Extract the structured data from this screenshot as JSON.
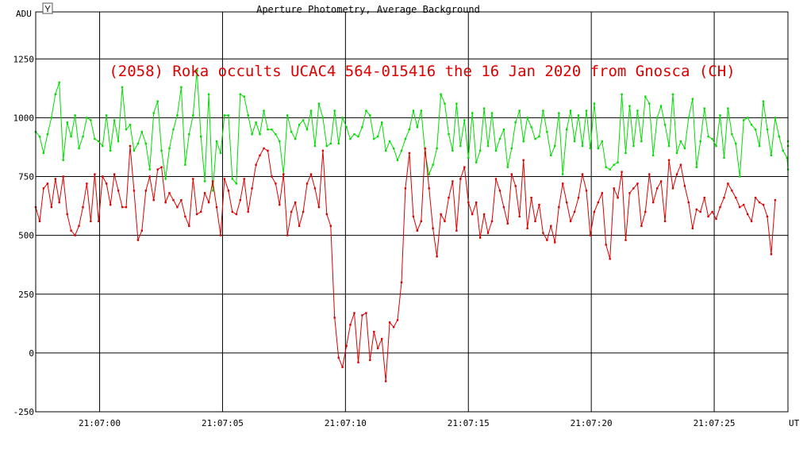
{
  "chart_data": {
    "type": "line",
    "title": "Aperture Photometry, Average Background",
    "annotation": "(2058) Roka occults UCAC4 564-015416 the 16 Jan 2020 from Gnosca (CH)",
    "ylabel": "ADU",
    "xlabel": "UT",
    "ylim": [
      -250,
      1450
    ],
    "xlim": [
      -2.6,
      28.0
    ],
    "x_tick_labels": [
      "21:07:00",
      "21:07:05",
      "21:07:10",
      "21:07:15",
      "21:07:20",
      "21:07:25"
    ],
    "x_tick_seconds": [
      0,
      5,
      10,
      15,
      20,
      25
    ],
    "y_ticks": [
      -250,
      0,
      250,
      500,
      750,
      1000,
      1250
    ],
    "grid": true,
    "series": [
      {
        "color": "#00dd00",
        "x_start": -2.6,
        "x_step": 0.16,
        "values": [
          940,
          920,
          850,
          930,
          1000,
          1100,
          1150,
          820,
          980,
          920,
          1010,
          870,
          920,
          1000,
          990,
          910,
          900,
          880,
          1010,
          860,
          990,
          900,
          1130,
          950,
          970,
          860,
          890,
          940,
          890,
          780,
          1020,
          1070,
          860,
          740,
          870,
          950,
          1010,
          1130,
          800,
          930,
          1010,
          1200,
          920,
          730,
          1100,
          690,
          900,
          850,
          1010,
          1010,
          740,
          720,
          1100,
          1090,
          1010,
          930,
          980,
          930,
          1030,
          950,
          950,
          930,
          900,
          760,
          1010,
          940,
          910,
          970,
          990,
          950,
          1030,
          880,
          1060,
          1000,
          880,
          890,
          1030,
          890,
          1000,
          960,
          910,
          930,
          920,
          960,
          1030,
          1010,
          910,
          920,
          980,
          860,
          900,
          870,
          820,
          860,
          910,
          950,
          1030,
          960,
          1030,
          850,
          760,
          800,
          870,
          1100,
          1060,
          930,
          860,
          1060,
          880,
          990,
          830,
          1020,
          810,
          860,
          1040,
          880,
          1020,
          860,
          910,
          950,
          790,
          870,
          980,
          1030,
          900,
          1000,
          960,
          910,
          920,
          1030,
          940,
          840,
          880,
          1020,
          760,
          950,
          1030,
          900,
          1010,
          880,
          1030,
          870,
          1060,
          870,
          900,
          790,
          780,
          800,
          810,
          1100,
          850,
          1050,
          880,
          1030,
          900,
          1090,
          1060,
          840,
          1000,
          1050,
          970,
          880,
          1100,
          850,
          900,
          870,
          1000,
          1080,
          790,
          900,
          1040,
          920,
          910,
          880,
          1010,
          830,
          1040,
          930,
          890,
          750,
          990,
          1000,
          970,
          950,
          880,
          1070,
          950,
          840,
          1000,
          920,
          860,
          830,
          780,
          880,
          900
        ]
      },
      {
        "color": "#dd0000",
        "x_start": -2.6,
        "x_step": 0.16,
        "values": [
          620,
          560,
          700,
          720,
          620,
          740,
          640,
          750,
          590,
          520,
          500,
          540,
          620,
          720,
          560,
          760,
          560,
          750,
          720,
          630,
          760,
          690,
          620,
          620,
          880,
          690,
          480,
          520,
          690,
          750,
          650,
          780,
          790,
          640,
          680,
          650,
          620,
          650,
          580,
          540,
          740,
          590,
          600,
          680,
          640,
          730,
          620,
          500,
          740,
          690,
          600,
          590,
          650,
          740,
          600,
          700,
          800,
          840,
          870,
          860,
          750,
          720,
          630,
          760,
          500,
          600,
          640,
          540,
          600,
          720,
          760,
          700,
          620,
          860,
          590,
          540,
          150,
          -20,
          -60,
          30,
          120,
          170,
          -40,
          160,
          170,
          -30,
          90,
          20,
          60,
          -120,
          130,
          110,
          140,
          300,
          700,
          850,
          580,
          520,
          560,
          870,
          700,
          530,
          410,
          590,
          560,
          660,
          730,
          520,
          740,
          790,
          640,
          590,
          640,
          490,
          590,
          510,
          560,
          740,
          690,
          620,
          550,
          760,
          710,
          580,
          820,
          530,
          660,
          560,
          630,
          510,
          480,
          540,
          470,
          620,
          720,
          640,
          560,
          600,
          660,
          760,
          690,
          500,
          600,
          640,
          680,
          460,
          400,
          700,
          660,
          770,
          480,
          680,
          700,
          720,
          540,
          600,
          760,
          640,
          700,
          730,
          560,
          820,
          700,
          760,
          800,
          710,
          640,
          530,
          610,
          600,
          660,
          580,
          600,
          570,
          620,
          660,
          720,
          690,
          660,
          620,
          630,
          590,
          560,
          660,
          640,
          630,
          580,
          420,
          650
        ]
      }
    ]
  }
}
